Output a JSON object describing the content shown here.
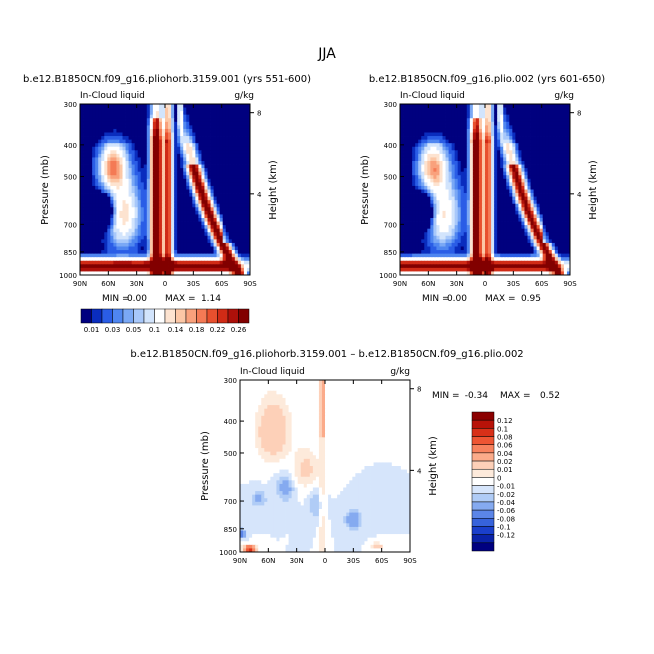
{
  "season": "JJA",
  "colorbar_main": {
    "labels": [
      "0.01",
      "0.03",
      "0.05",
      "0.1",
      "0.14",
      "0.18",
      "0.22",
      "0.26"
    ],
    "colors": [
      "#00007f",
      "#0a2dbe",
      "#2a5de6",
      "#4f86f0",
      "#7aa8f5",
      "#a8c8fa",
      "#d2e4fc",
      "#ffffff",
      "#fde3d0",
      "#fcc7a6",
      "#f9a17c",
      "#f47a55",
      "#e8502e",
      "#d02b16",
      "#ad100a",
      "#820000"
    ]
  },
  "colorbar_diff": {
    "labels": [
      "0.12",
      "0.1",
      "0.08",
      "0.06",
      "0.04",
      "0.02",
      "0.01",
      "0",
      "-0.01",
      "-0.02",
      "-0.04",
      "-0.06",
      "-0.08",
      "-0.1",
      "-0.12"
    ],
    "colors": [
      "#8b0000",
      "#b81208",
      "#d83018",
      "#ee5533",
      "#f7825e",
      "#fbab8a",
      "#fdd0b8",
      "#fdeadb",
      "#ffffff",
      "#d6e5fb",
      "#b0ccf6",
      "#85aaf0",
      "#5b85e8",
      "#3763db",
      "#1a3fcb",
      "#0a22a8",
      "#000080"
    ]
  },
  "chart_data": [
    {
      "type": "heatmap",
      "title": "b.e12.B1850CN.f09_g16.pliohorb.3159.001 (yrs 551-600)",
      "subtitle": "In-Cloud liquid",
      "units": "g/kg",
      "ylabel": "Pressure (mb)",
      "ylabel_right": "Height (km)",
      "x_ticks": [
        "90N",
        "60N",
        "30N",
        "0",
        "30S",
        "60S",
        "90S"
      ],
      "y_ticks": [
        "300",
        "400",
        "500",
        "700",
        "850",
        "1000"
      ],
      "y2_ticks": [
        "8",
        "4"
      ],
      "ylim": [
        1000,
        300
      ],
      "y_scale": "log",
      "min_label": "MIN =",
      "min": "0.00",
      "max_label": "MAX =",
      "max": "1.14",
      "scale": "main"
    },
    {
      "type": "heatmap",
      "title": "b.e12.B1850CN.f09_g16.plio.002 (yrs 601-650)",
      "subtitle": "In-Cloud liquid",
      "units": "g/kg",
      "ylabel": "Pressure (mb)",
      "ylabel_right": "Height (km)",
      "x_ticks": [
        "90N",
        "60N",
        "30N",
        "0",
        "30S",
        "60S",
        "90S"
      ],
      "y_ticks": [
        "300",
        "400",
        "500",
        "700",
        "850",
        "1000"
      ],
      "y2_ticks": [
        "8",
        "4"
      ],
      "ylim": [
        1000,
        300
      ],
      "y_scale": "log",
      "min_label": "MIN =",
      "min": "0.00",
      "max_label": "MAX =",
      "max": "0.95",
      "scale": "main"
    },
    {
      "type": "heatmap",
      "title": "b.e12.B1850CN.f09_g16.pliohorb.3159.001 – b.e12.B1850CN.f09_g16.plio.002",
      "subtitle": "In-Cloud liquid",
      "units": "g/kg",
      "ylabel": "Pressure (mb)",
      "ylabel_right": "Height (km)",
      "x_ticks": [
        "90N",
        "60N",
        "30N",
        "0",
        "30S",
        "60S",
        "90S"
      ],
      "y_ticks": [
        "300",
        "400",
        "500",
        "700",
        "850",
        "1000"
      ],
      "y2_ticks": [
        "8",
        "4"
      ],
      "ylim": [
        1000,
        300
      ],
      "y_scale": "log",
      "min_label": "MIN =",
      "min": "-0.34",
      "max_label": "MAX =",
      "max": "0.52",
      "scale": "diff"
    }
  ]
}
